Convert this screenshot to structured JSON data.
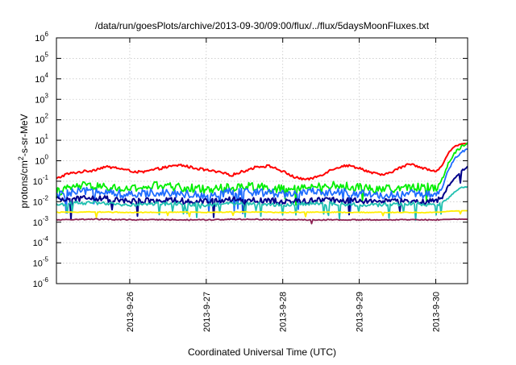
{
  "chart_data": {
    "type": "line",
    "title": "/data/run/goesPlots/archive/2013-09-30/09:00/flux/../flux/5daysMoonFluxes.txt",
    "xlabel": "Coordinated Universal Time (UTC)",
    "ylabel": {
      "pre": "protons/cm",
      "sup": "2",
      "post": "-s-sr-MeV"
    },
    "yscale": "log",
    "ylim": [
      1e-06,
      1000000.0
    ],
    "y_ticks": [
      {
        "value": 1e-06,
        "base": "10",
        "exp": "-6"
      },
      {
        "value": 1e-05,
        "base": "10",
        "exp": "-5"
      },
      {
        "value": 0.0001,
        "base": "10",
        "exp": "-4"
      },
      {
        "value": 0.001,
        "base": "10",
        "exp": "-3"
      },
      {
        "value": 0.01,
        "base": "10",
        "exp": "-2"
      },
      {
        "value": 0.1,
        "base": "10",
        "exp": "-1"
      },
      {
        "value": 1.0,
        "base": "10",
        "exp": "0"
      },
      {
        "value": 10.0,
        "base": "10",
        "exp": "1"
      },
      {
        "value": 100.0,
        "base": "10",
        "exp": "2"
      },
      {
        "value": 1000.0,
        "base": "10",
        "exp": "3"
      },
      {
        "value": 10000.0,
        "base": "10",
        "exp": "4"
      },
      {
        "value": 100000.0,
        "base": "10",
        "exp": "5"
      },
      {
        "value": 1000000.0,
        "base": "10",
        "exp": "6"
      }
    ],
    "xlim": [
      "2013-09-25T01:00",
      "2013-09-30T10:00"
    ],
    "x_ticks": [
      {
        "value": "2013-09-26T00:00",
        "label": "2013-9-26"
      },
      {
        "value": "2013-09-27T00:00",
        "label": "2013-9-27"
      },
      {
        "value": "2013-09-28T00:00",
        "label": "2013-9-28"
      },
      {
        "value": "2013-09-29T00:00",
        "label": "2013-9-29"
      },
      {
        "value": "2013-09-30T00:00",
        "label": "2013-9-30"
      }
    ],
    "grid": true,
    "series": [
      {
        "color": "#ff0000",
        "points": [
          [
            "2013-09-25T01:00",
            0.13
          ],
          [
            "2013-09-25T04:00",
            0.22
          ],
          [
            "2013-09-25T08:00",
            0.28
          ],
          [
            "2013-09-25T12:00",
            0.33
          ],
          [
            "2013-09-25T16:00",
            0.5
          ],
          [
            "2013-09-25T20:00",
            0.45
          ],
          [
            "2013-09-26T00:00",
            0.32
          ],
          [
            "2013-09-26T04:00",
            0.27
          ],
          [
            "2013-09-26T08:00",
            0.38
          ],
          [
            "2013-09-26T12:00",
            0.5
          ],
          [
            "2013-09-26T16:00",
            0.62
          ],
          [
            "2013-09-26T20:00",
            0.45
          ],
          [
            "2013-09-27T00:00",
            0.35
          ],
          [
            "2013-09-27T04:00",
            0.27
          ],
          [
            "2013-09-27T08:00",
            0.2
          ],
          [
            "2013-09-27T12:00",
            0.32
          ],
          [
            "2013-09-27T16:00",
            0.52
          ],
          [
            "2013-09-27T20:00",
            0.55
          ],
          [
            "2013-09-28T00:00",
            0.3
          ],
          [
            "2013-09-28T04:00",
            0.15
          ],
          [
            "2013-09-28T08:00",
            0.12
          ],
          [
            "2013-09-28T12:00",
            0.2
          ],
          [
            "2013-09-28T16:00",
            0.42
          ],
          [
            "2013-09-28T20:00",
            0.6
          ],
          [
            "2013-09-29T00:00",
            0.45
          ],
          [
            "2013-09-29T04:00",
            0.25
          ],
          [
            "2013-09-29T08:00",
            0.2
          ],
          [
            "2013-09-29T12:00",
            0.4
          ],
          [
            "2013-09-29T16:00",
            0.72
          ],
          [
            "2013-09-29T20:00",
            0.45
          ],
          [
            "2013-09-30T00:00",
            0.28
          ],
          [
            "2013-09-30T02:00",
            0.6
          ],
          [
            "2013-09-30T04:00",
            2.5
          ],
          [
            "2013-09-30T06:00",
            5.0
          ],
          [
            "2013-09-30T08:00",
            6.5
          ],
          [
            "2013-09-30T10:00",
            7.0
          ]
        ]
      },
      {
        "color": "#00ee00",
        "points": [
          [
            "2013-09-25T01:00",
            0.03
          ],
          [
            "2013-09-25T08:00",
            0.06
          ],
          [
            "2013-09-25T16:00",
            0.05
          ],
          [
            "2013-09-26T00:00",
            0.04
          ],
          [
            "2013-09-26T08:00",
            0.06
          ],
          [
            "2013-09-26T16:00",
            0.05
          ],
          [
            "2013-09-27T00:00",
            0.04
          ],
          [
            "2013-09-27T08:00",
            0.05
          ],
          [
            "2013-09-27T16:00",
            0.06
          ],
          [
            "2013-09-28T00:00",
            0.04
          ],
          [
            "2013-09-28T08:00",
            0.05
          ],
          [
            "2013-09-28T16:00",
            0.06
          ],
          [
            "2013-09-29T00:00",
            0.05
          ],
          [
            "2013-09-29T08:00",
            0.04
          ],
          [
            "2013-09-29T16:00",
            0.05
          ],
          [
            "2013-09-30T00:00",
            0.05
          ],
          [
            "2013-09-30T02:00",
            0.12
          ],
          [
            "2013-09-30T04:00",
            0.8
          ],
          [
            "2013-09-30T06:00",
            2.5
          ],
          [
            "2013-09-30T08:00",
            5.0
          ],
          [
            "2013-09-30T10:00",
            8.0
          ]
        ]
      },
      {
        "color": "#1e6cff",
        "points": [
          [
            "2013-09-25T01:00",
            0.02
          ],
          [
            "2013-09-25T08:00",
            0.03
          ],
          [
            "2013-09-25T16:00",
            0.035
          ],
          [
            "2013-09-26T00:00",
            0.02
          ],
          [
            "2013-09-26T08:00",
            0.03
          ],
          [
            "2013-09-26T16:00",
            0.025
          ],
          [
            "2013-09-27T00:00",
            0.02
          ],
          [
            "2013-09-27T08:00",
            0.03
          ],
          [
            "2013-09-27T16:00",
            0.03
          ],
          [
            "2013-09-28T00:00",
            0.025
          ],
          [
            "2013-09-28T08:00",
            0.03
          ],
          [
            "2013-09-28T16:00",
            0.03
          ],
          [
            "2013-09-29T00:00",
            0.025
          ],
          [
            "2013-09-29T08:00",
            0.02
          ],
          [
            "2013-09-29T16:00",
            0.025
          ],
          [
            "2013-09-30T00:00",
            0.02
          ],
          [
            "2013-09-30T02:00",
            0.05
          ],
          [
            "2013-09-30T04:00",
            0.35
          ],
          [
            "2013-09-30T06:00",
            1.2
          ],
          [
            "2013-09-30T08:00",
            2.5
          ],
          [
            "2013-09-30T10:00",
            4.0
          ]
        ]
      },
      {
        "color": "#00008b",
        "points": [
          [
            "2013-09-25T01:00",
            0.012
          ],
          [
            "2013-09-25T08:00",
            0.015
          ],
          [
            "2013-09-25T16:00",
            0.014
          ],
          [
            "2013-09-26T00:00",
            0.01
          ],
          [
            "2013-09-26T08:00",
            0.012
          ],
          [
            "2013-09-26T16:00",
            0.011
          ],
          [
            "2013-09-27T00:00",
            0.01
          ],
          [
            "2013-09-27T08:00",
            0.012
          ],
          [
            "2013-09-27T16:00",
            0.012
          ],
          [
            "2013-09-28T00:00",
            0.01
          ],
          [
            "2013-09-28T08:00",
            0.011
          ],
          [
            "2013-09-28T16:00",
            0.012
          ],
          [
            "2013-09-29T00:00",
            0.011
          ],
          [
            "2013-09-29T08:00",
            0.01
          ],
          [
            "2013-09-29T16:00",
            0.011
          ],
          [
            "2013-09-30T00:00",
            0.01
          ],
          [
            "2013-09-30T02:00",
            0.015
          ],
          [
            "2013-09-30T04:00",
            0.06
          ],
          [
            "2013-09-30T06:00",
            0.15
          ],
          [
            "2013-09-30T08:00",
            0.3
          ],
          [
            "2013-09-30T10:00",
            0.5
          ]
        ]
      },
      {
        "color": "#20c0b0",
        "points": [
          [
            "2013-09-25T01:00",
            0.007
          ],
          [
            "2013-09-25T08:00",
            0.009
          ],
          [
            "2013-09-25T16:00",
            0.008
          ],
          [
            "2013-09-26T00:00",
            0.007
          ],
          [
            "2013-09-26T08:00",
            0.008
          ],
          [
            "2013-09-26T16:00",
            0.008
          ],
          [
            "2013-09-27T00:00",
            0.007
          ],
          [
            "2013-09-27T08:00",
            0.008
          ],
          [
            "2013-09-27T16:00",
            0.008
          ],
          [
            "2013-09-28T00:00",
            0.007
          ],
          [
            "2013-09-28T08:00",
            0.008
          ],
          [
            "2013-09-28T16:00",
            0.008
          ],
          [
            "2013-09-29T00:00",
            0.007
          ],
          [
            "2013-09-29T08:00",
            0.007
          ],
          [
            "2013-09-29T16:00",
            0.008
          ],
          [
            "2013-09-30T00:00",
            0.007
          ],
          [
            "2013-09-30T02:00",
            0.009
          ],
          [
            "2013-09-30T04:00",
            0.015
          ],
          [
            "2013-09-30T06:00",
            0.03
          ],
          [
            "2013-09-30T08:00",
            0.05
          ],
          [
            "2013-09-30T10:00",
            0.055
          ]
        ]
      },
      {
        "color": "#ffee00",
        "points": [
          [
            "2013-09-25T01:00",
            0.003
          ],
          [
            "2013-09-25T12:00",
            0.0032
          ],
          [
            "2013-09-26T00:00",
            0.003
          ],
          [
            "2013-09-26T12:00",
            0.0031
          ],
          [
            "2013-09-27T00:00",
            0.003
          ],
          [
            "2013-09-27T12:00",
            0.0032
          ],
          [
            "2013-09-28T00:00",
            0.003
          ],
          [
            "2013-09-28T12:00",
            0.0031
          ],
          [
            "2013-09-29T00:00",
            0.003
          ],
          [
            "2013-09-29T12:00",
            0.003
          ],
          [
            "2013-09-30T00:00",
            0.003
          ],
          [
            "2013-09-30T05:00",
            0.0035
          ],
          [
            "2013-09-30T10:00",
            0.0036
          ]
        ]
      },
      {
        "color": "#8b2252",
        "points": [
          [
            "2013-09-25T01:00",
            0.0013
          ],
          [
            "2013-09-25T12:00",
            0.0014
          ],
          [
            "2013-09-26T00:00",
            0.0013
          ],
          [
            "2013-09-26T12:00",
            0.0013
          ],
          [
            "2013-09-27T00:00",
            0.0013
          ],
          [
            "2013-09-27T12:00",
            0.0014
          ],
          [
            "2013-09-28T00:00",
            0.0013
          ],
          [
            "2013-09-28T12:00",
            0.0013
          ],
          [
            "2013-09-29T00:00",
            0.0013
          ],
          [
            "2013-09-29T12:00",
            0.0013
          ],
          [
            "2013-09-30T00:00",
            0.0013
          ],
          [
            "2013-09-30T05:00",
            0.0014
          ],
          [
            "2013-09-30T10:00",
            0.0014
          ]
        ]
      }
    ]
  }
}
